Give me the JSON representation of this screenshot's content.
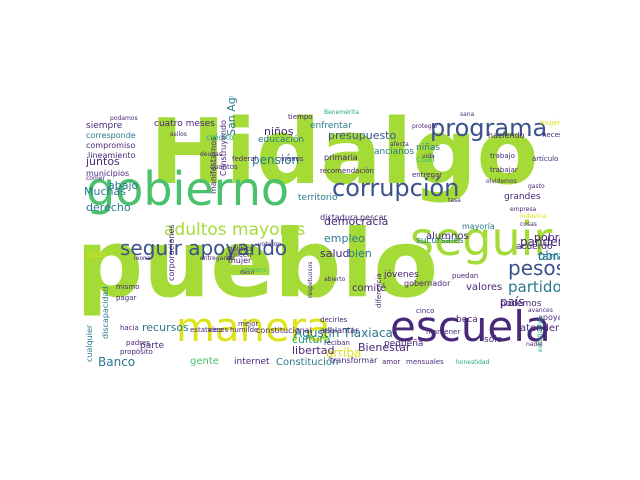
{
  "palette": {
    "lime": "#a5db36",
    "green": "#4ac16d",
    "teal": "#2a788e",
    "slate": "#3b528b",
    "purple": "#482878",
    "yellow": "#dde318",
    "seafoam": "#22a884",
    "navy": "#31446b"
  },
  "words": [
    {
      "text": "Hidalgo",
      "color": "lime"
    },
    {
      "text": "pueblo",
      "color": "lime"
    },
    {
      "text": "gobierno",
      "color": "green"
    },
    {
      "text": "manera",
      "color": "yellow"
    },
    {
      "text": "escuela",
      "color": "purple"
    },
    {
      "text": "seguir",
      "color": "lime"
    },
    {
      "text": "programa",
      "color": "slate"
    },
    {
      "text": "corrupción",
      "color": "slate"
    },
    {
      "text": "seguir apoyando",
      "color": "slate"
    },
    {
      "text": "pesos",
      "color": "slate"
    },
    {
      "text": "adultos mayores",
      "color": "lime"
    },
    {
      "text": "presupuesto",
      "color": "slate"
    },
    {
      "text": "pandemia",
      "color": "purple"
    },
    {
      "text": "partido",
      "color": "teal"
    },
    {
      "text": "Banco",
      "color": "teal"
    },
    {
      "text": "Agustín Tlaxiaca",
      "color": "teal"
    },
    {
      "text": "recursos",
      "color": "teal"
    },
    {
      "text": "familia",
      "color": "teal"
    },
    {
      "text": "democracia",
      "color": "purple"
    },
    {
      "text": "niños",
      "color": "purple"
    },
    {
      "text": "Bienestar",
      "color": "purple"
    },
    {
      "text": "arriba",
      "color": "yellow"
    },
    {
      "text": "cultura",
      "color": "seafoam"
    },
    {
      "text": "libertad",
      "color": "purple"
    },
    {
      "text": "gente",
      "color": "green"
    },
    {
      "text": "Constitución",
      "color": "teal"
    },
    {
      "text": "internet",
      "color": "purple"
    },
    {
      "text": "derecho",
      "color": "teal"
    },
    {
      "text": "abajo",
      "color": "teal"
    },
    {
      "text": "juntos",
      "color": "purple"
    },
    {
      "text": "Muchas",
      "color": "teal"
    },
    {
      "text": "país",
      "color": "purple"
    },
    {
      "text": "obra",
      "color": "teal"
    },
    {
      "text": "empleo",
      "color": "teal"
    },
    {
      "text": "salud",
      "color": "purple"
    },
    {
      "text": "bien",
      "color": "teal"
    },
    {
      "text": "comité",
      "color": "purple"
    },
    {
      "text": "pobre",
      "color": "purple"
    },
    {
      "text": "atender",
      "color": "purple"
    },
    {
      "text": "alumnos",
      "color": "purple"
    },
    {
      "text": "valores",
      "color": "purple"
    },
    {
      "text": "pensión",
      "color": "teal"
    },
    {
      "text": "San Agustín",
      "color": "teal"
    },
    {
      "text": "siempre",
      "color": "purple"
    },
    {
      "text": "cuatro meses",
      "color": "purple"
    },
    {
      "text": "enfrentar",
      "color": "teal"
    },
    {
      "text": "ancianos",
      "color": "teal"
    },
    {
      "text": "sucursales",
      "color": "teal"
    },
    {
      "text": "grandes",
      "color": "purple"
    },
    {
      "text": "acuerdo",
      "color": "purple"
    },
    {
      "text": "cuál",
      "color": "green"
    },
    {
      "text": "niñas",
      "color": "teal"
    },
    {
      "text": "educación",
      "color": "teal"
    },
    {
      "text": "territorio",
      "color": "teal"
    },
    {
      "text": "pequeña",
      "color": "purple"
    },
    {
      "text": "parte",
      "color": "purple"
    },
    {
      "text": "jóvenes",
      "color": "purple"
    },
    {
      "text": "sólo",
      "color": "purple"
    },
    {
      "text": "beca",
      "color": "purple"
    },
    {
      "text": "podemos",
      "color": "purple"
    },
    {
      "text": "apoyar",
      "color": "purple"
    },
    {
      "text": "mujer",
      "color": "purple"
    },
    {
      "text": "crédito",
      "color": "seafoam"
    },
    {
      "text": "corresponde",
      "color": "teal"
    },
    {
      "text": "compromiso",
      "color": "purple"
    },
    {
      "text": "lineamiento",
      "color": "purple"
    },
    {
      "text": "municipios",
      "color": "purple"
    },
    {
      "text": "gobernador",
      "color": "purple"
    },
    {
      "text": "constitucional",
      "color": "purple"
    },
    {
      "text": "adelantar",
      "color": "purple"
    },
    {
      "text": "transformar",
      "color": "purple"
    },
    {
      "text": "Construyendo",
      "color": "purple"
    },
    {
      "text": "manifestarnos",
      "color": "purple"
    },
    {
      "text": "corporaciones",
      "color": "purple"
    },
    {
      "text": "cualquier",
      "color": "teal"
    },
    {
      "text": "discapacidad",
      "color": "teal"
    },
    {
      "text": "primaria",
      "color": "purple"
    },
    {
      "text": "haciendo",
      "color": "purple"
    },
    {
      "text": "mayoría",
      "color": "teal"
    },
    {
      "text": "dictadura",
      "color": "purple"
    },
    {
      "text": "pescar",
      "color": "purple"
    },
    {
      "text": "tiempo",
      "color": "purple"
    },
    {
      "text": "cuantos",
      "color": "purple"
    },
    {
      "text": "federal",
      "color": "purple"
    },
    {
      "text": "menos",
      "color": "purple"
    },
    {
      "text": "mejor",
      "color": "purple"
    },
    {
      "text": "veces",
      "color": "purple"
    },
    {
      "text": "humilde",
      "color": "purple"
    },
    {
      "text": "recomendación",
      "color": "purple"
    },
    {
      "text": "entregar",
      "color": "purple"
    },
    {
      "text": "trabajar",
      "color": "purple"
    },
    {
      "text": "trabajo",
      "color": "purple"
    },
    {
      "text": "mensuales",
      "color": "purple"
    },
    {
      "text": "amor",
      "color": "purple"
    },
    {
      "text": "cinco",
      "color": "purple"
    },
    {
      "text": "puedan",
      "color": "purple"
    },
    {
      "text": "mantener",
      "color": "purple"
    },
    {
      "text": "diferencia",
      "color": "purple"
    },
    {
      "text": "reciban",
      "color": "purple"
    },
    {
      "text": "decirles",
      "color": "purple"
    },
    {
      "text": "padres",
      "color": "purple"
    },
    {
      "text": "propósito",
      "color": "purple"
    },
    {
      "text": "hacia",
      "color": "purple"
    },
    {
      "text": "estatales",
      "color": "purple"
    },
    {
      "text": "mismo",
      "color": "purple"
    },
    {
      "text": "pagar",
      "color": "purple"
    },
    {
      "text": "gusto",
      "color": "yellow"
    },
    {
      "text": "política",
      "color": "purple"
    },
    {
      "text": "utilicen",
      "color": "purple"
    },
    {
      "text": "artículo",
      "color": "purple"
    },
    {
      "text": "necesitan",
      "color": "purple"
    },
    {
      "text": "mujeres",
      "color": "yellow"
    },
    {
      "text": "sana",
      "color": "purple"
    },
    {
      "text": "Benemérita",
      "color": "seafoam"
    },
    {
      "text": "podamos",
      "color": "purple"
    },
    {
      "text": "asilos",
      "color": "purple"
    },
    {
      "text": "comer",
      "color": "purple"
    },
    {
      "text": "decir",
      "color": "purple"
    },
    {
      "text": "entregando",
      "color": "purple"
    },
    {
      "text": "leona",
      "color": "purple"
    },
    {
      "text": "vida",
      "color": "purple"
    },
    {
      "text": "tasa",
      "color": "purple"
    },
    {
      "text": "estudiantes",
      "color": "seafoam"
    },
    {
      "text": "nadie",
      "color": "purple"
    },
    {
      "text": "honestidad",
      "color": "seafoam"
    },
    {
      "text": "empresa",
      "color": "purple"
    },
    {
      "text": "cosas",
      "color": "purple"
    },
    {
      "text": "industria",
      "color": "yellow"
    },
    {
      "text": "avances",
      "color": "purple"
    },
    {
      "text": "meses",
      "color": "green"
    },
    {
      "text": "abierto",
      "color": "purple"
    },
    {
      "text": "votaron",
      "color": "purple"
    },
    {
      "text": "respetuosos",
      "color": "purple"
    },
    {
      "text": "protegió",
      "color": "purple"
    },
    {
      "text": "afecta",
      "color": "purple"
    },
    {
      "text": "deudas",
      "color": "purple"
    },
    {
      "text": "gasto",
      "color": "purple"
    },
    {
      "text": "olvidemos",
      "color": "purple"
    }
  ]
}
